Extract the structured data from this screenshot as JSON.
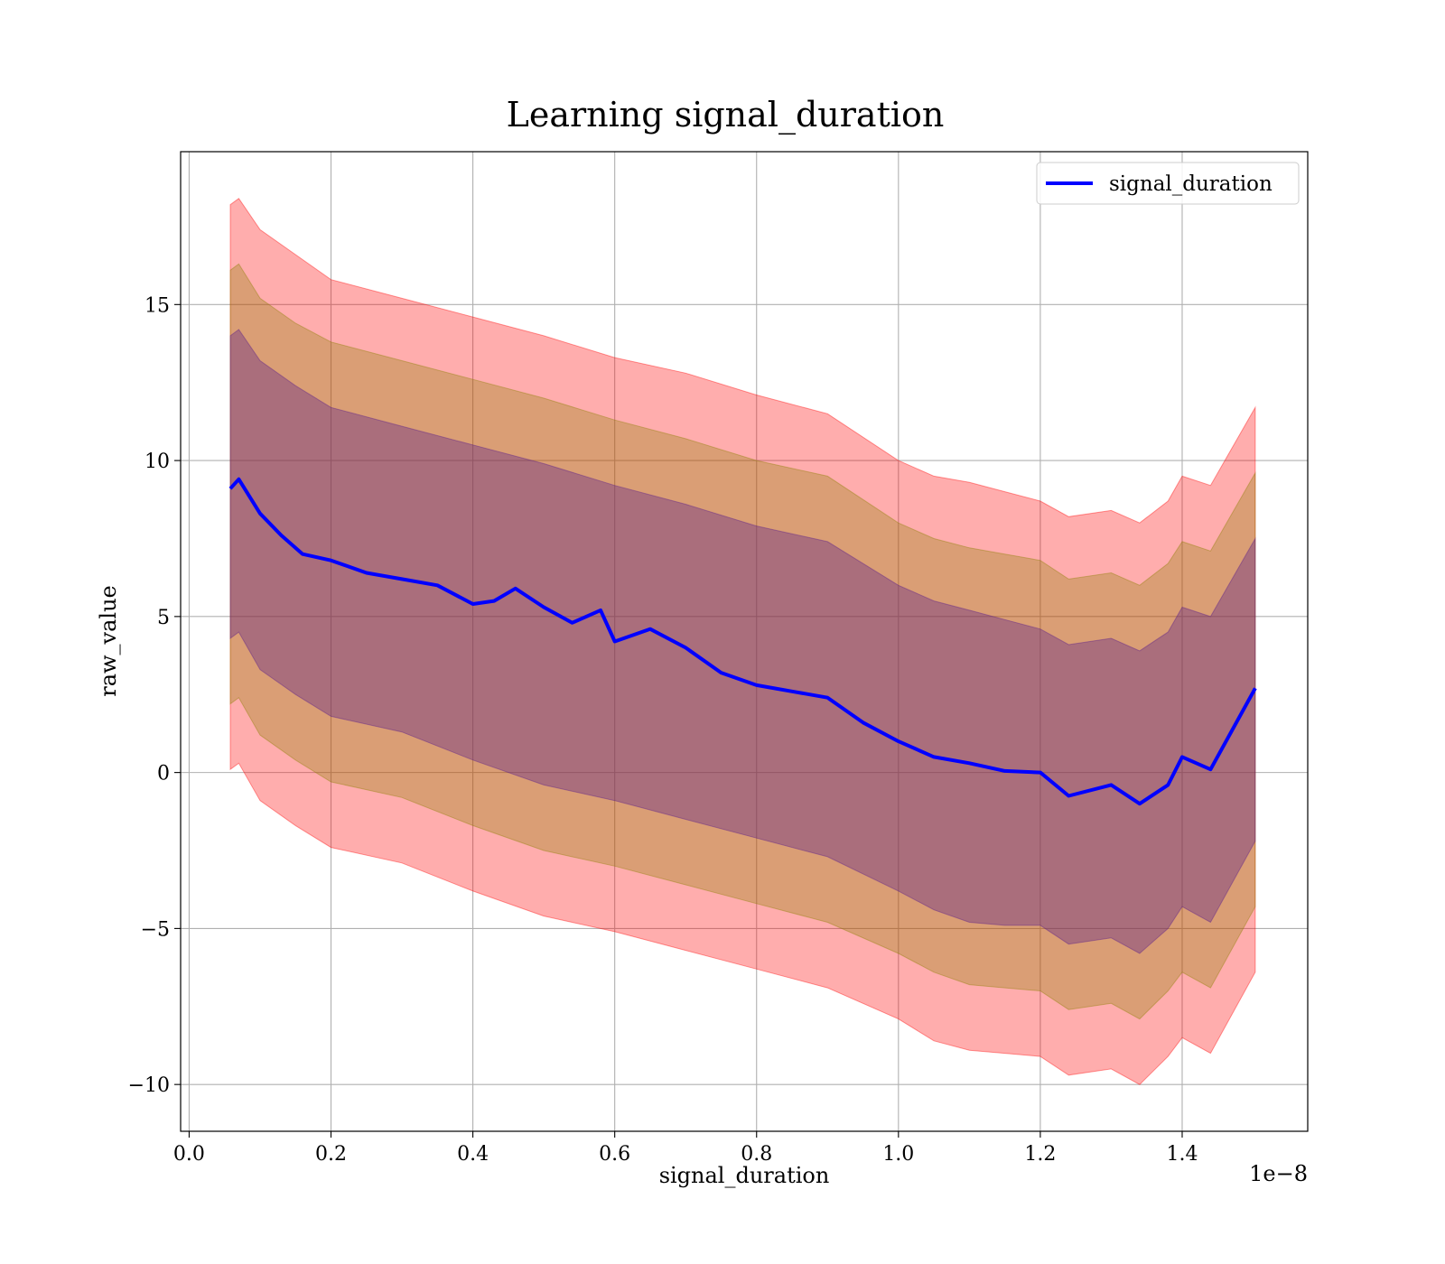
{
  "chart_data": {
    "type": "line",
    "title": "Learning signal_duration",
    "xlabel": "signal_duration",
    "ylabel": "raw_value",
    "x_scale_label": "1e−8",
    "xlim": [
      -0.012,
      1.577
    ],
    "ylim": [
      -11.5,
      19.9
    ],
    "x_ticks": [
      0.0,
      0.2,
      0.4,
      0.6,
      0.8,
      1.0,
      1.2,
      1.4
    ],
    "x_tick_labels": [
      "0.0",
      "0.2",
      "0.4",
      "0.6",
      "0.8",
      "1.0",
      "1.2",
      "1.4"
    ],
    "y_ticks": [
      -10,
      -5,
      0,
      5,
      10,
      15
    ],
    "y_tick_labels": [
      "−10",
      "−5",
      "0",
      "5",
      "10",
      "15"
    ],
    "grid": true,
    "legend": {
      "position": "top-right",
      "entries": [
        "signal_duration"
      ]
    },
    "colors": {
      "line": "#0000ff",
      "band_outer": "#ff0000",
      "band_middle": "#8b8000",
      "band_inner": "#551a8b"
    },
    "series": [
      {
        "name": "signal_duration",
        "x": [
          0.058,
          0.07,
          0.1,
          0.13,
          0.16,
          0.2,
          0.25,
          0.3,
          0.35,
          0.4,
          0.43,
          0.46,
          0.5,
          0.54,
          0.58,
          0.6,
          0.65,
          0.7,
          0.75,
          0.8,
          0.85,
          0.9,
          0.95,
          1.0,
          1.05,
          1.1,
          1.15,
          1.2,
          1.24,
          1.3,
          1.34,
          1.38,
          1.4,
          1.44,
          1.503
        ],
        "y": [
          9.1,
          9.4,
          8.3,
          7.6,
          7.0,
          6.8,
          6.4,
          6.2,
          6.0,
          5.4,
          5.5,
          5.9,
          5.3,
          4.8,
          5.2,
          4.2,
          4.6,
          4.0,
          3.2,
          2.8,
          2.6,
          2.4,
          1.6,
          1.0,
          0.5,
          0.3,
          0.05,
          0.0,
          -0.75,
          -0.4,
          -1.0,
          -0.4,
          0.5,
          0.1,
          2.7
        ]
      }
    ],
    "bands": [
      {
        "x": [
          0.058,
          0.07,
          0.1,
          0.15,
          0.2,
          0.3,
          0.4,
          0.5,
          0.6,
          0.7,
          0.8,
          0.9,
          1.0,
          1.05,
          1.1,
          1.15,
          1.2,
          1.24,
          1.3,
          1.34,
          1.38,
          1.4,
          1.44,
          1.503
        ],
        "outer_upper": [
          18.2,
          18.4,
          17.4,
          16.6,
          15.8,
          15.2,
          14.6,
          14.0,
          13.3,
          12.8,
          12.1,
          11.5,
          10.0,
          9.5,
          9.3,
          9.0,
          8.7,
          8.2,
          8.4,
          8.0,
          8.7,
          9.5,
          9.2,
          11.7
        ],
        "middle_upper": [
          16.1,
          16.3,
          15.2,
          14.4,
          13.8,
          13.2,
          12.6,
          12.0,
          11.3,
          10.7,
          10.0,
          9.5,
          8.0,
          7.5,
          7.2,
          7.0,
          6.8,
          6.2,
          6.4,
          6.0,
          6.7,
          7.4,
          7.1,
          9.6
        ],
        "inner_upper": [
          14.0,
          14.2,
          13.2,
          12.4,
          11.7,
          11.1,
          10.5,
          9.9,
          9.2,
          8.6,
          7.9,
          7.4,
          6.0,
          5.5,
          5.2,
          4.9,
          4.6,
          4.1,
          4.3,
          3.9,
          4.5,
          5.3,
          5.0,
          7.5
        ],
        "inner_lower": [
          4.3,
          4.5,
          3.3,
          2.5,
          1.8,
          1.3,
          0.4,
          -0.4,
          -0.9,
          -1.5,
          -2.1,
          -2.7,
          -3.8,
          -4.4,
          -4.8,
          -4.9,
          -4.9,
          -5.5,
          -5.3,
          -5.8,
          -5.0,
          -4.3,
          -4.8,
          -2.2
        ],
        "middle_lower": [
          2.2,
          2.4,
          1.2,
          0.4,
          -0.3,
          -0.8,
          -1.7,
          -2.5,
          -3.0,
          -3.6,
          -4.2,
          -4.8,
          -5.8,
          -6.4,
          -6.8,
          -6.9,
          -7.0,
          -7.6,
          -7.4,
          -7.9,
          -7.0,
          -6.4,
          -6.9,
          -4.3
        ],
        "outer_lower": [
          0.1,
          0.3,
          -0.9,
          -1.7,
          -2.4,
          -2.9,
          -3.8,
          -4.6,
          -5.1,
          -5.7,
          -6.3,
          -6.9,
          -7.9,
          -8.6,
          -8.9,
          -9.0,
          -9.1,
          -9.7,
          -9.5,
          -10.0,
          -9.1,
          -8.5,
          -9.0,
          -6.4
        ]
      }
    ]
  }
}
